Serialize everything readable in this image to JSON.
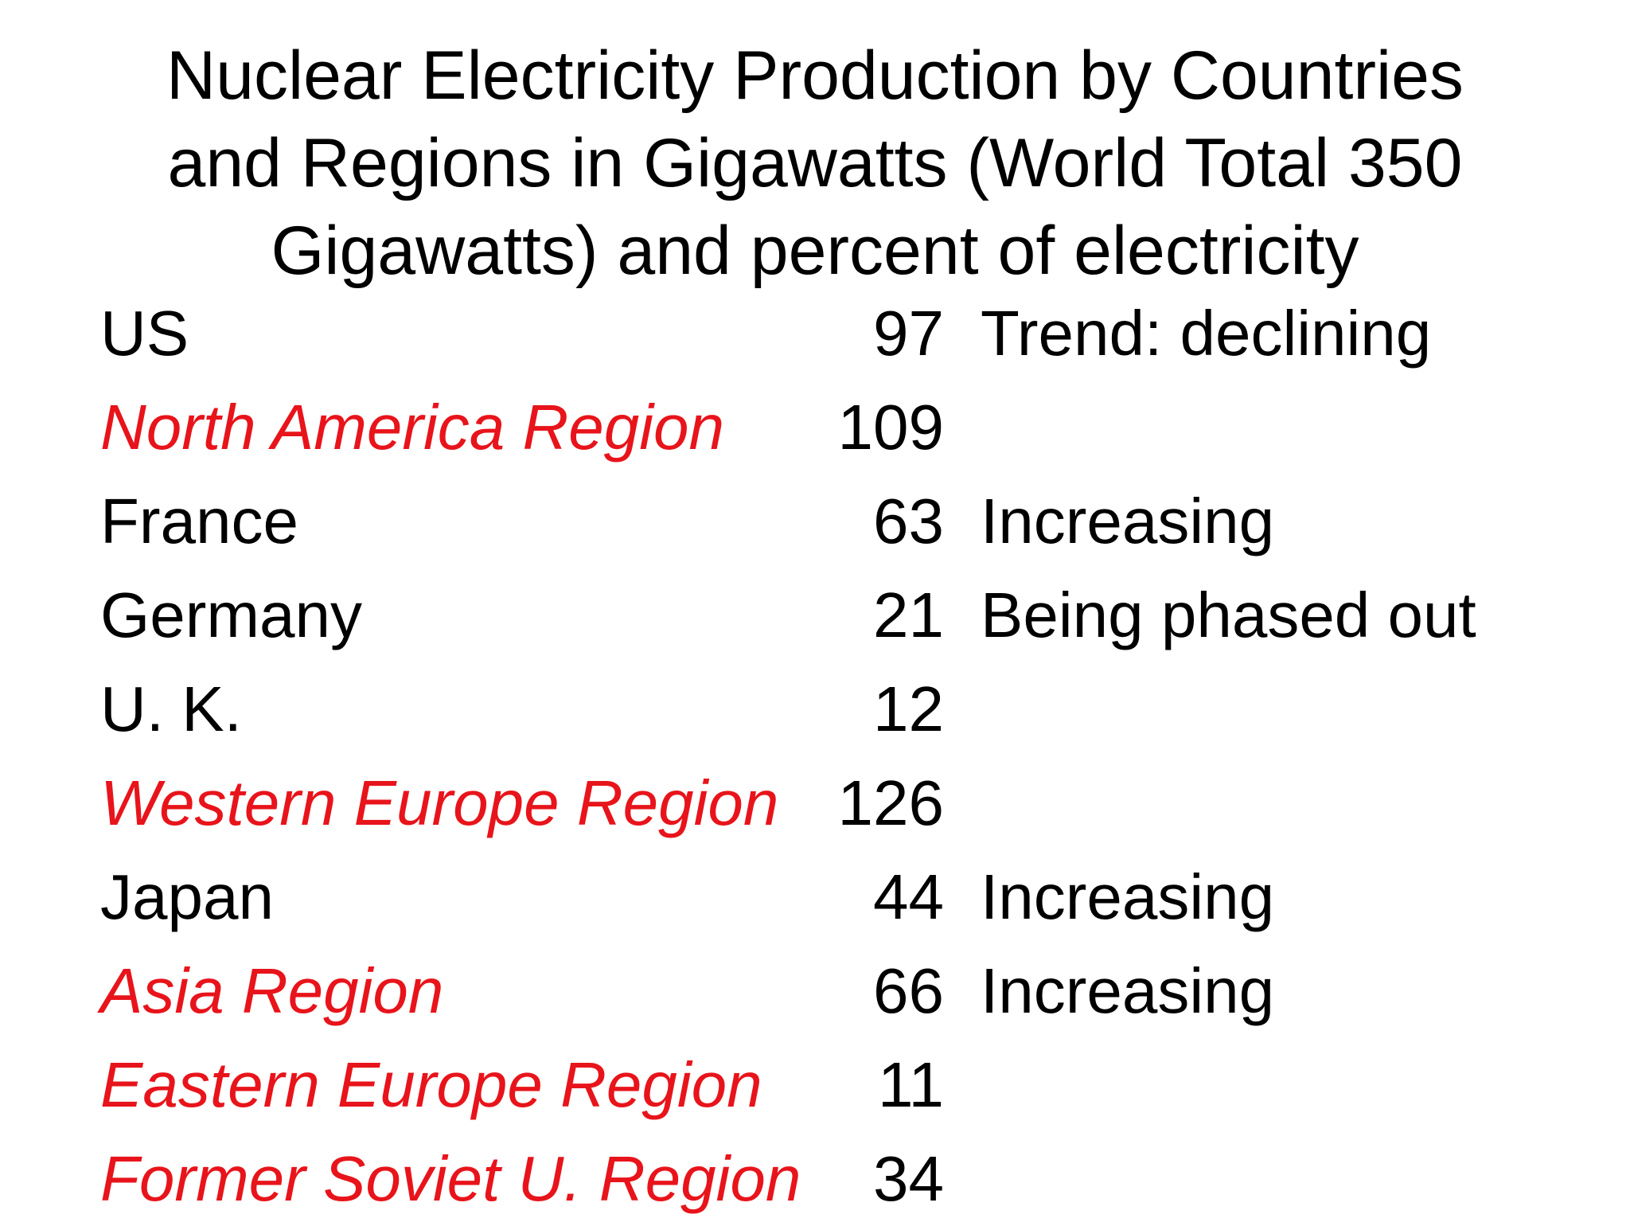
{
  "title_lines": [
    "Nuclear Electricity Production by Countries",
    "and Regions in Gigawatts (World Total 350",
    "Gigawatts) and percent of electricity"
  ],
  "colors": {
    "region": "#e8141b",
    "text": "#000000",
    "background": "#ffffff"
  },
  "rows": [
    {
      "name": "US",
      "value": "97",
      "note": "Trend: declining",
      "is_region": false
    },
    {
      "name": "North America Region",
      "value": "109",
      "note": "",
      "is_region": true
    },
    {
      "name": "France",
      "value": "63",
      "note": "Increasing",
      "is_region": false
    },
    {
      "name": "Germany",
      "value": "21",
      "note": "Being phased out",
      "is_region": false
    },
    {
      "name": "U. K.",
      "value": "12",
      "note": "",
      "is_region": false
    },
    {
      "name": "Western Europe Region",
      "value": "126",
      "note": "",
      "is_region": true
    },
    {
      "name": "Japan",
      "value": "44",
      "note": "Increasing",
      "is_region": false
    },
    {
      "name": "Asia Region",
      "value": "66",
      "note": "Increasing",
      "is_region": true
    },
    {
      "name": "Eastern Europe Region",
      "value": "11",
      "note": "",
      "is_region": true
    },
    {
      "name": "Former Soviet U. Region",
      "value": "34",
      "note": "",
      "is_region": true
    }
  ]
}
